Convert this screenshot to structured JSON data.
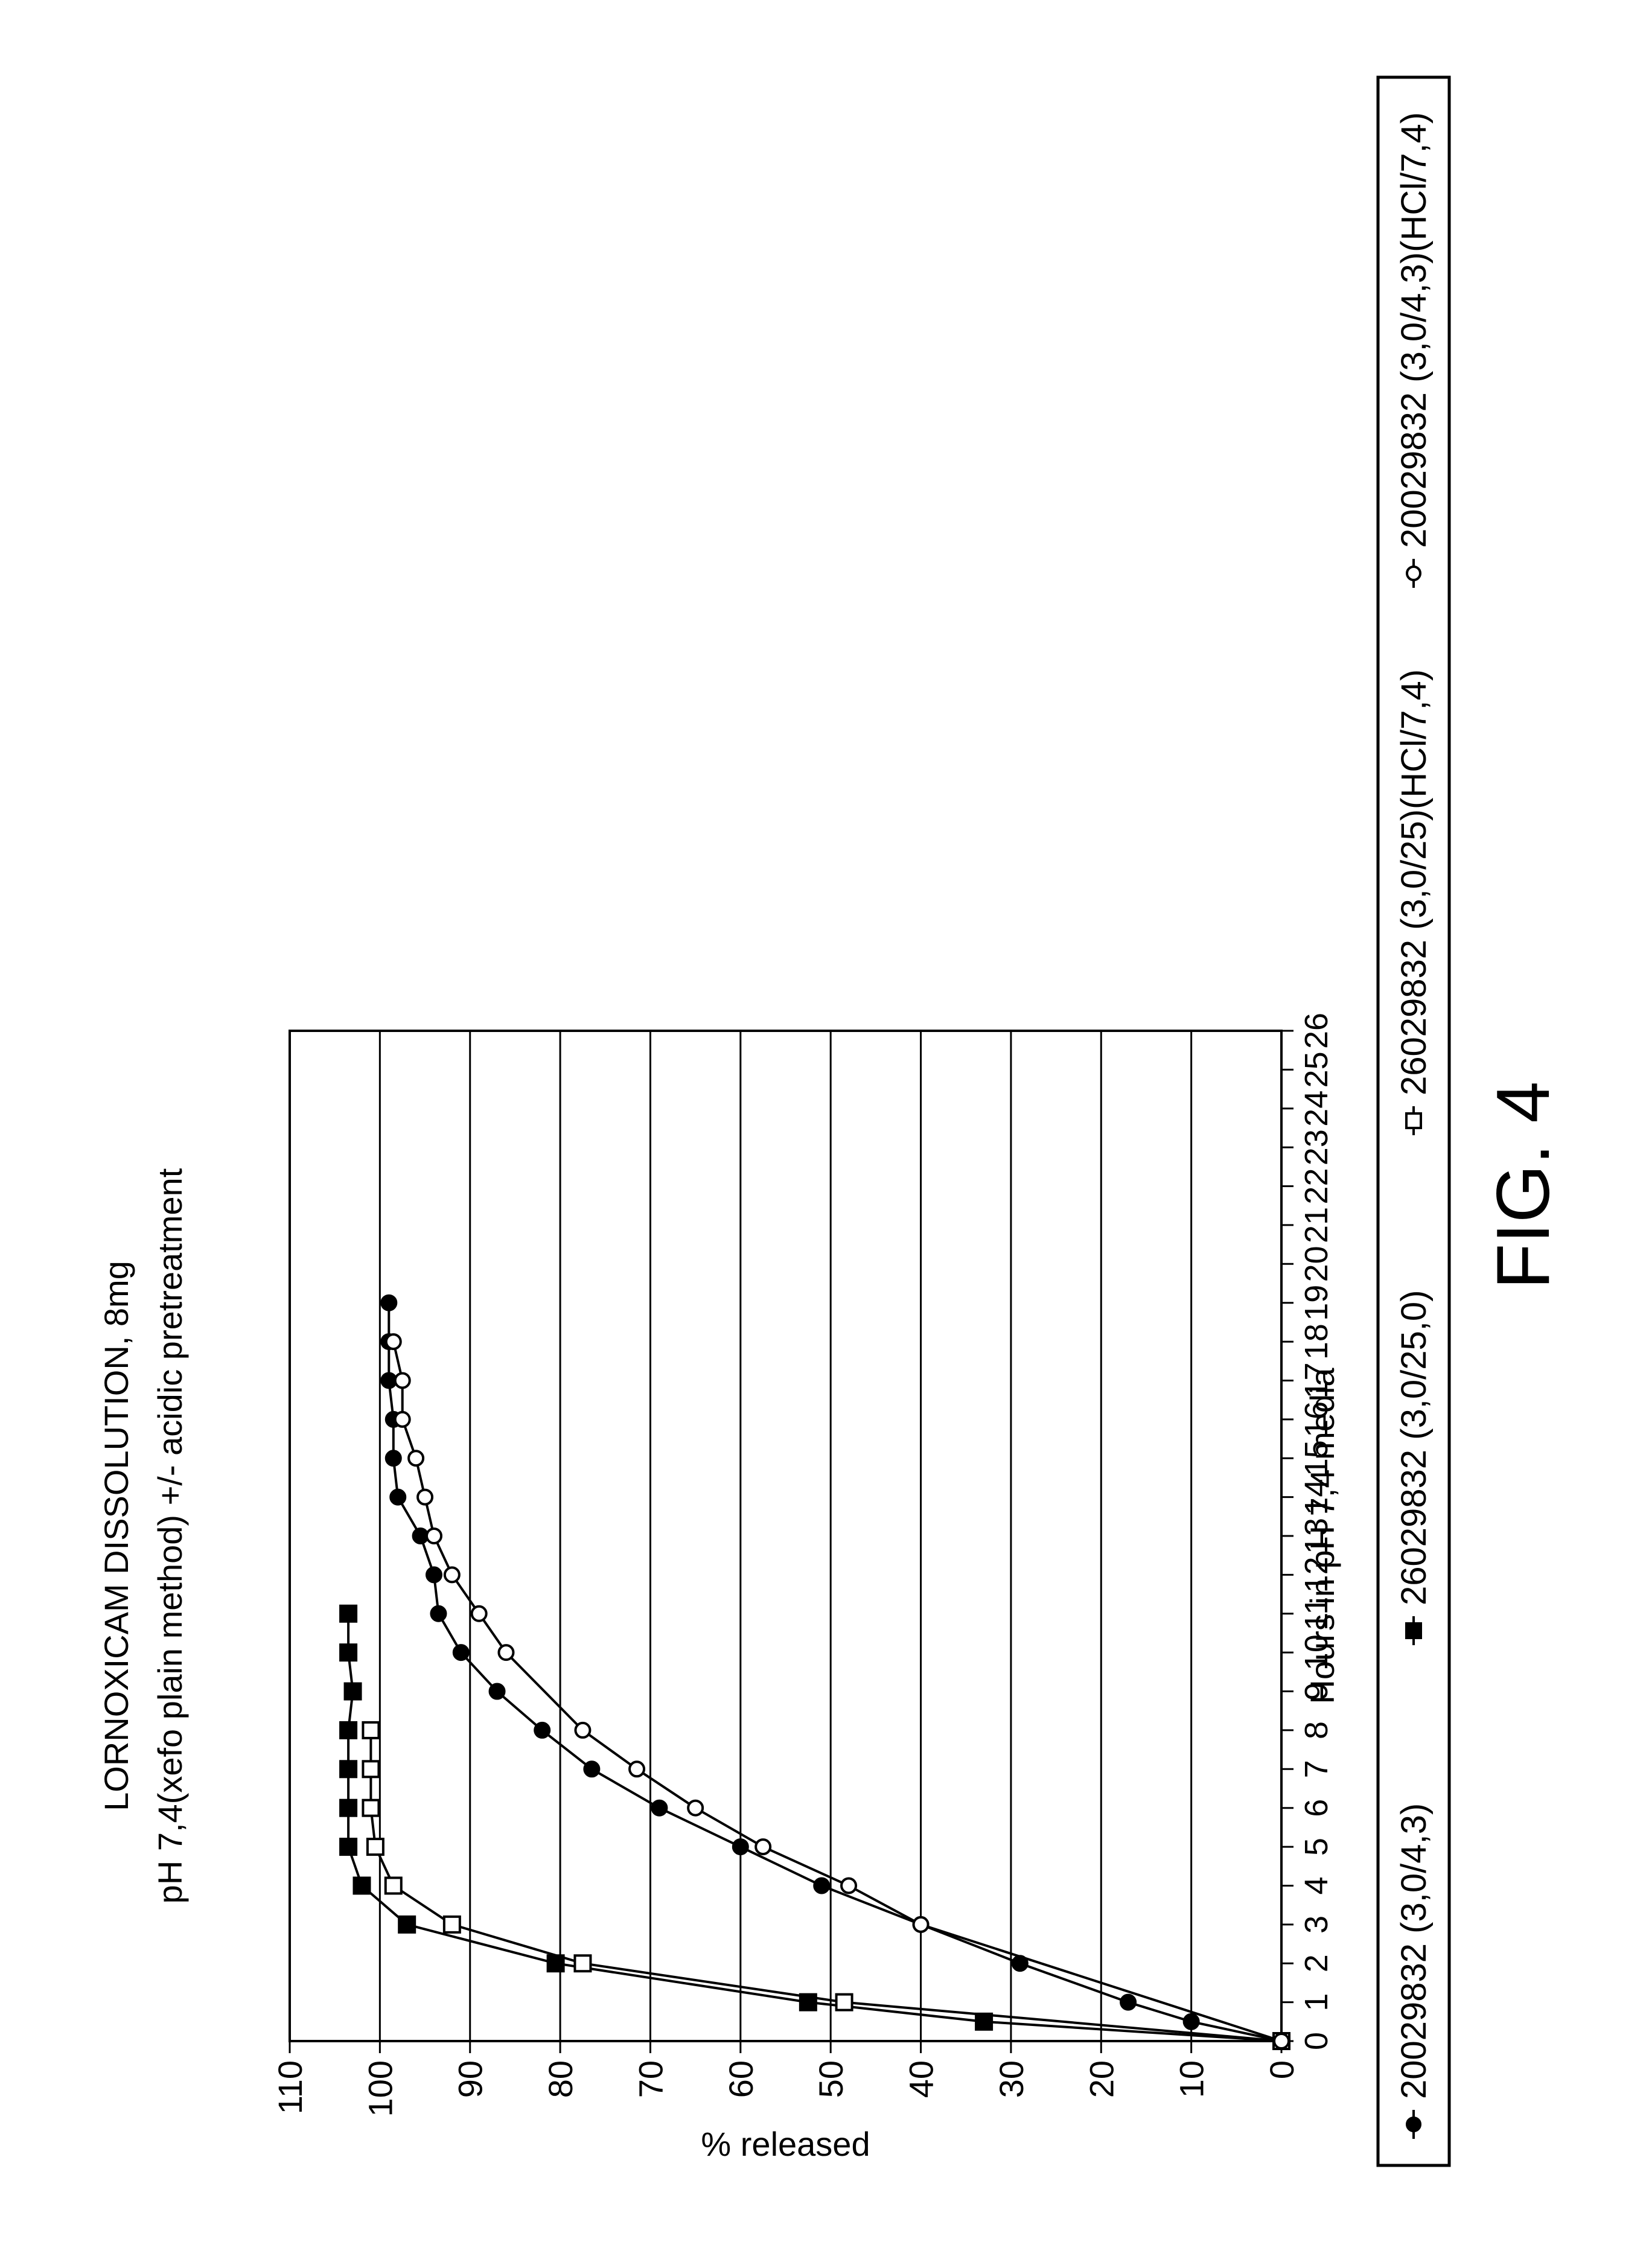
{
  "chart_data": {
    "type": "line",
    "title": "LORNOXICAM DISSOLUTION, 8mg",
    "subtitle": "pH 7,4(xefo plain method) +/- acidic pretreatment",
    "xlabel": "Hours in pH 7,4 media",
    "ylabel": "% released",
    "xlim": [
      0,
      26
    ],
    "ylim": [
      0,
      110
    ],
    "x_ticks": [
      0,
      1,
      2,
      3,
      4,
      5,
      6,
      7,
      8,
      9,
      10,
      11,
      12,
      13,
      14,
      15,
      16,
      17,
      18,
      19,
      20,
      21,
      22,
      23,
      24,
      25,
      26
    ],
    "y_ticks": [
      0,
      10,
      20,
      30,
      40,
      50,
      60,
      70,
      80,
      90,
      100,
      110
    ],
    "grid": "horizontal",
    "rotation": "-90deg",
    "legend_position": "right",
    "figure_label": "FIG. 4",
    "series": [
      {
        "name": "20029832 (3,0/4,3)",
        "marker": "filled-circle",
        "x": [
          0,
          0.5,
          1,
          2,
          3,
          4,
          5,
          6,
          7,
          8,
          9,
          10,
          11,
          12,
          13,
          14,
          15,
          16,
          17,
          18,
          19
        ],
        "values": [
          0,
          10,
          17,
          29,
          40,
          51,
          60,
          69,
          76.5,
          82,
          87,
          91,
          93.5,
          94,
          95.5,
          98,
          98.5,
          98.5,
          99,
          99,
          99
        ]
      },
      {
        "name": "26029832 (3,0/25,0)",
        "marker": "filled-square",
        "x": [
          0,
          0.5,
          1,
          2,
          3,
          4,
          5,
          6,
          7,
          8,
          9,
          10,
          11
        ],
        "values": [
          0,
          33,
          52.5,
          80.5,
          97,
          102,
          103.5,
          103.5,
          103.5,
          103.5,
          103,
          103.5,
          103.5
        ]
      },
      {
        "name": "26029832 (3,0/25)(HCl/7,4)",
        "marker": "open-square",
        "x": [
          0,
          1,
          2,
          3,
          4,
          5,
          6,
          7,
          8
        ],
        "values": [
          0,
          48.5,
          77.5,
          92,
          98.5,
          100.5,
          101,
          101,
          101
        ]
      },
      {
        "name": "20029832 (3,0/4,3)(HCl/7,4)",
        "marker": "open-circle",
        "x": [
          0,
          3,
          4,
          5,
          6,
          7,
          8,
          10,
          11,
          12,
          13,
          14,
          15,
          16,
          17,
          18
        ],
        "values": [
          0,
          40,
          48,
          57.5,
          65,
          71.5,
          77.5,
          86,
          89,
          92,
          94,
          95,
          96,
          97.5,
          97.5,
          98.5
        ]
      }
    ]
  }
}
